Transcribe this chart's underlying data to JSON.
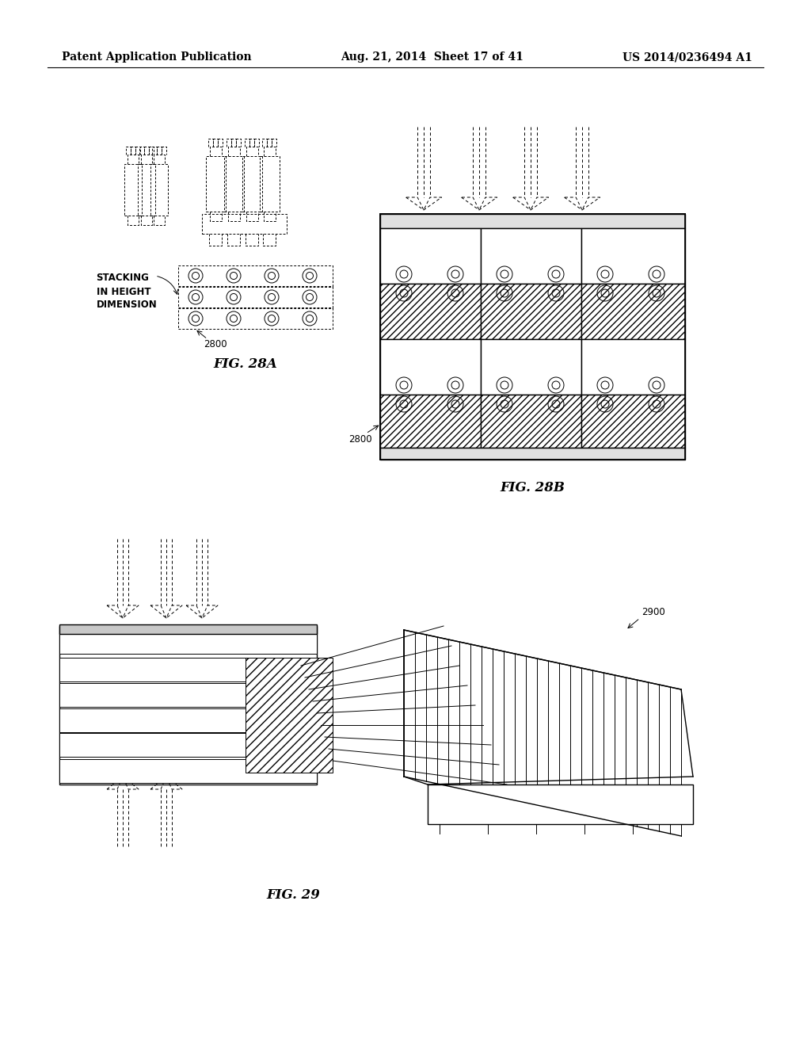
{
  "background_color": "#ffffff",
  "header_left": "Patent Application Publication",
  "header_center": "Aug. 21, 2014  Sheet 17 of 41",
  "header_right": "US 2014/0236494 A1",
  "header_fontsize": 10,
  "fig28a_label": "FIG. 28A",
  "fig28b_label": "FIG. 28B",
  "fig29_label": "FIG. 29",
  "label_2800_a": "2800",
  "label_2800_b": "2800",
  "label_2900": "2900",
  "stacking_text": "STACKING\nIN HEIGHT\nDIMENSION"
}
